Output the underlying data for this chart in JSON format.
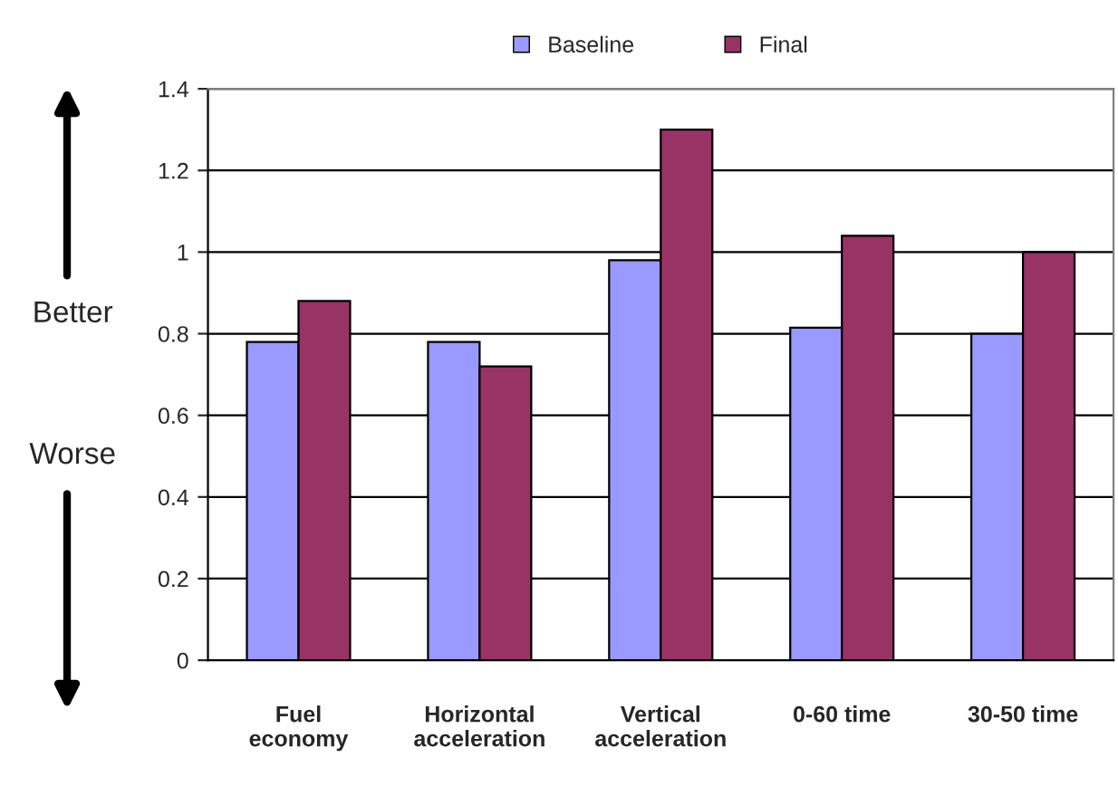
{
  "chart_data": {
    "type": "bar",
    "categories": [
      "Fuel\neconomy",
      "Horizontal\nacceleration",
      "Vertical\nacceleration",
      "0-60 time",
      "30-50 time"
    ],
    "series": [
      {
        "name": "Baseline",
        "color": "#9999ff",
        "values": [
          0.78,
          0.78,
          0.98,
          0.815,
          0.8
        ]
      },
      {
        "name": "Final",
        "color": "#993366",
        "values": [
          0.88,
          0.72,
          1.3,
          1.04,
          1.0
        ]
      }
    ],
    "ylim": [
      0,
      1.4
    ],
    "yticks": [
      0,
      0.2,
      0.4,
      0.6,
      0.8,
      1,
      1.2,
      1.4
    ],
    "grid": "y",
    "legend": "top",
    "annotations": [
      "Better",
      "Worse"
    ]
  }
}
